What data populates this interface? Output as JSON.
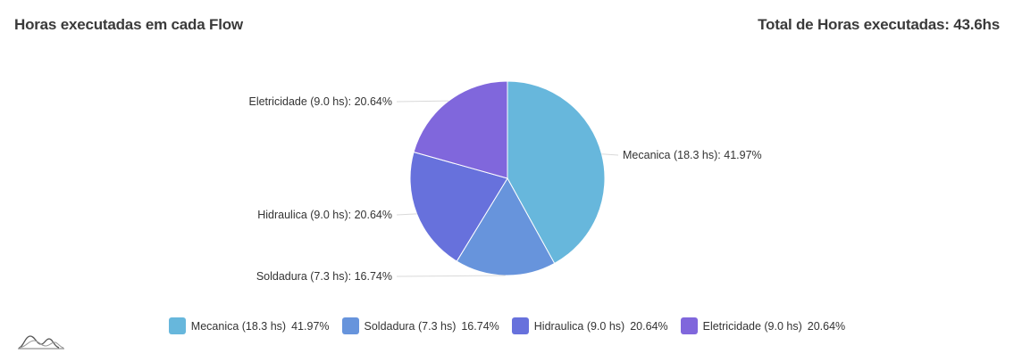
{
  "header": {
    "title": "Horas executadas em cada Flow",
    "total": "Total de Horas executadas: 43.6hs"
  },
  "chart_data": {
    "type": "pie",
    "unit": "hs",
    "slices": [
      {
        "name": "Mecanica",
        "value": 18.3,
        "percent": 41.97,
        "label": "Mecanica (18.3 hs): 41.97%",
        "legend_name": "Mecanica (18.3 hs)",
        "legend_value": "41.97%",
        "color": "#67b7dc"
      },
      {
        "name": "Soldadura",
        "value": 7.3,
        "percent": 16.74,
        "label": "Soldadura (7.3 hs): 16.74%",
        "legend_name": "Soldadura (7.3 hs)",
        "legend_value": "16.74%",
        "color": "#6794dc"
      },
      {
        "name": "Hidraulica",
        "value": 9.0,
        "percent": 20.64,
        "label": "Hidraulica (9.0 hs): 20.64%",
        "legend_name": "Hidraulica (9.0 hs)",
        "legend_value": "20.64%",
        "color": "#6771dc"
      },
      {
        "name": "Eletricidade",
        "value": 9.0,
        "percent": 20.64,
        "label": "Eletricidade (9.0 hs): 20.64%",
        "legend_name": "Eletricidade (9.0 hs)",
        "legend_value": "20.64%",
        "color": "#8067dc"
      }
    ],
    "legend_position": "bottom"
  },
  "logo": {
    "icon": "amcharts-logo-icon",
    "color": "#888888"
  }
}
